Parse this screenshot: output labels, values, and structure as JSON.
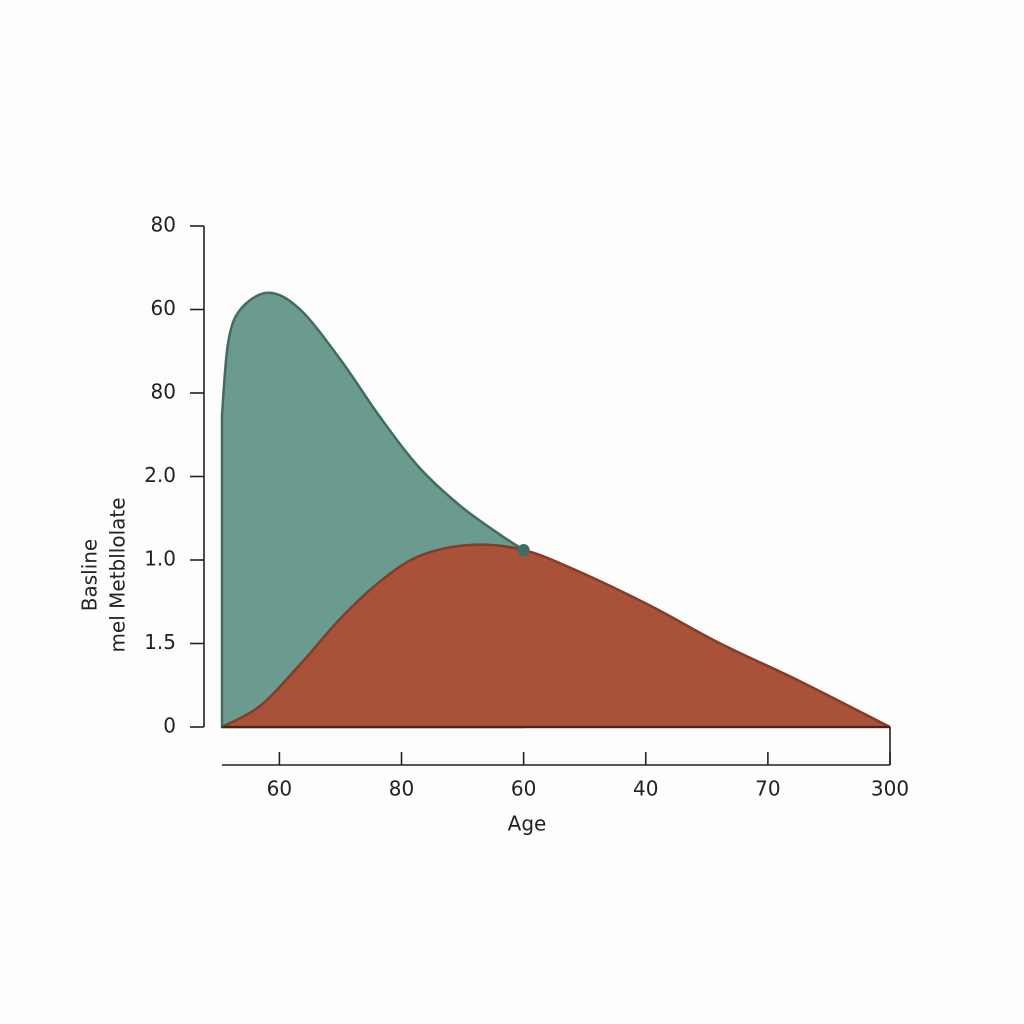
{
  "chart_data": {
    "type": "area",
    "xlabel": "Age",
    "ylabel": [
      "Basline",
      "mel Metbllolate"
    ],
    "xlim": [
      -0.47,
      5
    ],
    "ylim": [
      0,
      6
    ],
    "xticks": [
      {
        "value": 0,
        "label": "60"
      },
      {
        "value": 1,
        "label": "80"
      },
      {
        "value": 2,
        "label": "60"
      },
      {
        "value": 3,
        "label": "40"
      },
      {
        "value": 4,
        "label": "70"
      },
      {
        "value": 5,
        "label": "300"
      }
    ],
    "yticks": [
      0,
      {
        "value": 1,
        "label": "1.5"
      },
      {
        "value": 2,
        "label": "1.0"
      },
      {
        "value": 3,
        "label": "2.0"
      },
      {
        "value": 4,
        "label": "80"
      },
      {
        "value": 5,
        "label": "60"
      },
      {
        "value": 6,
        "label": "80"
      }
    ],
    "series": [
      {
        "color": "#6b9a8f",
        "edge": "#3f6d62",
        "x": [
          -0.47,
          -0.42,
          -0.32,
          -0.09,
          0.17,
          0.5,
          0.83,
          1.15,
          1.48,
          1.81,
          2.0
        ],
        "values": [
          3.74,
          4.6,
          5.0,
          5.2,
          5.0,
          4.4,
          3.7,
          3.1,
          2.65,
          2.3,
          2.12
        ]
      },
      {
        "color": "#a8523a",
        "edge": "#8a3a26",
        "x": [
          -0.47,
          -0.16,
          0.17,
          0.5,
          0.83,
          1.15,
          1.56,
          2.0,
          2.47,
          3.04,
          3.61,
          4.26,
          5.0
        ],
        "values": [
          0,
          0.25,
          0.75,
          1.3,
          1.75,
          2.05,
          2.18,
          2.12,
          1.85,
          1.45,
          1.0,
          0.55,
          0
        ]
      }
    ]
  }
}
